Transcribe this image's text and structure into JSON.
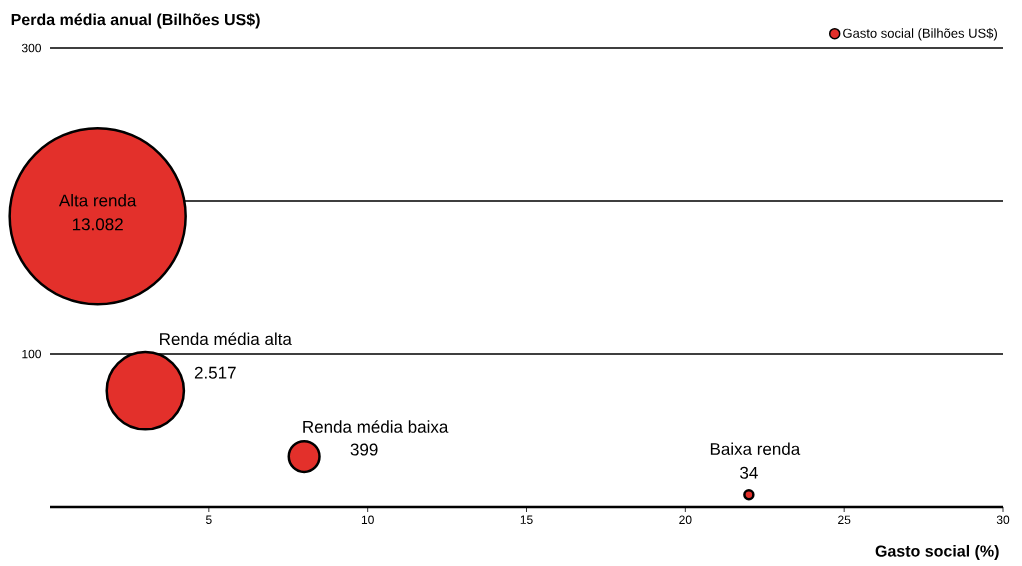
{
  "chart_data": {
    "type": "bubble",
    "ylabel": "Perda média anual (Bilhões US$)",
    "xlabel": "Gasto social (%)",
    "series": [
      {
        "name": "Gasto social (Bilhões US$)",
        "color": "#e3302b",
        "x": [
          1.5,
          3,
          8,
          22
        ],
        "values": [
          190,
          76,
          33,
          8
        ],
        "sizes": [
          13082,
          2517,
          399,
          34
        ],
        "value_labels": [
          "13.082",
          "2.517",
          "399",
          "34"
        ]
      }
    ],
    "annotations": [
      {
        "text": "Alta renda",
        "x": 1.5,
        "y": 190
      },
      {
        "text": "Renda média alta",
        "x": 3,
        "y": 76
      },
      {
        "text": "Renda média baixa",
        "x": 8,
        "y": 33
      },
      {
        "text": "Baixa renda",
        "x": 22,
        "y": 8
      }
    ],
    "xlim": [
      0,
      30
    ],
    "xticks": [
      5,
      10,
      15,
      20,
      25,
      30
    ],
    "ylim": [
      0,
      300
    ],
    "yticks": [
      {
        "value": 200,
        "label": null
      },
      100,
      300
    ],
    "grid": "y",
    "legend": "top right"
  }
}
